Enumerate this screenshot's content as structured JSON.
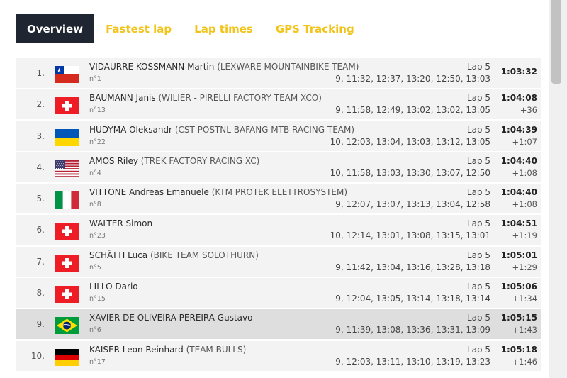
{
  "tabs": [
    {
      "label": "Overview"
    },
    {
      "label": "Fastest lap"
    },
    {
      "label": "Lap times"
    },
    {
      "label": "GPS Tracking"
    }
  ],
  "colors": {
    "accent": "#f2c318",
    "active_tab_bg": "#1f2631"
  },
  "rows": [
    {
      "rank": "1.",
      "flag": "chile-flag-icon",
      "name": "VIDAURRE KOSSMANN Martin",
      "team": "(LEXWARE MOUNTAINBIKE TEAM)",
      "bib": "n°1",
      "lap": "Lap 5",
      "splits": "9, 11:32, 12:37, 13:20, 12:50, 13:03",
      "time": "1:03:32",
      "gap": ""
    },
    {
      "rank": "2.",
      "flag": "switzerland-flag-icon",
      "name": "BAUMANN Janis",
      "team": "(WILIER - PIRELLI FACTORY TEAM XCO)",
      "bib": "n°13",
      "lap": "Lap 5",
      "splits": "9, 11:58, 12:49, 13:02, 13:02, 13:05",
      "time": "1:04:08",
      "gap": "+36"
    },
    {
      "rank": "3.",
      "flag": "ukraine-flag-icon",
      "name": "HUDYMA Oleksandr",
      "team": "(CST POSTNL BAFANG MTB RACING TEAM)",
      "bib": "n°22",
      "lap": "Lap 5",
      "splits": "10, 12:03, 13:04, 13:03, 13:12, 13:05",
      "time": "1:04:39",
      "gap": "+1:07"
    },
    {
      "rank": "4.",
      "flag": "usa-flag-icon",
      "name": "AMOS Riley",
      "team": "(TREK FACTORY RACING XC)",
      "bib": "n°4",
      "lap": "Lap 5",
      "splits": "10, 11:58, 13:03, 13:30, 13:07, 12:50",
      "time": "1:04:40",
      "gap": "+1:08"
    },
    {
      "rank": "5.",
      "flag": "italy-flag-icon",
      "name": "VITTONE Andreas Emanuele",
      "team": "(KTM PROTEK ELETTROSYSTEM)",
      "bib": "n°8",
      "lap": "Lap 5",
      "splits": "9, 12:07, 13:07, 13:13, 13:04, 12:58",
      "time": "1:04:40",
      "gap": "+1:08"
    },
    {
      "rank": "6.",
      "flag": "switzerland-flag-icon",
      "name": "WALTER Simon",
      "team": "",
      "bib": "n°23",
      "lap": "Lap 5",
      "splits": "10, 12:14, 13:01, 13:08, 13:15, 13:01",
      "time": "1:04:51",
      "gap": "+1:19"
    },
    {
      "rank": "7.",
      "flag": "switzerland-flag-icon",
      "name": "SCHÄTTI Luca",
      "team": "(BIKE TEAM SOLOTHURN)",
      "bib": "n°5",
      "lap": "Lap 5",
      "splits": "9, 11:42, 13:04, 13:16, 13:28, 13:18",
      "time": "1:05:01",
      "gap": "+1:29"
    },
    {
      "rank": "8.",
      "flag": "switzerland-flag-icon",
      "name": "LILLO Dario",
      "team": "",
      "bib": "n°15",
      "lap": "Lap 5",
      "splits": "9, 12:04, 13:05, 13:14, 13:18, 13:14",
      "time": "1:05:06",
      "gap": "+1:34"
    },
    {
      "rank": "9.",
      "flag": "brazil-flag-icon",
      "name": "XAVIER DE OLIVEIRA PEREIRA Gustavo",
      "team": "",
      "bib": "n°6",
      "lap": "Lap 5",
      "splits": "9, 11:39, 13:08, 13:36, 13:31, 13:09",
      "time": "1:05:15",
      "gap": "+1:43"
    },
    {
      "rank": "10.",
      "flag": "germany-flag-icon",
      "name": "KAISER Leon Reinhard",
      "team": "(TEAM BULLS)",
      "bib": "n°17",
      "lap": "Lap 5",
      "splits": "9, 12:03, 13:11, 13:10, 13:19, 13:23",
      "time": "1:05:18",
      "gap": "+1:46"
    }
  ]
}
